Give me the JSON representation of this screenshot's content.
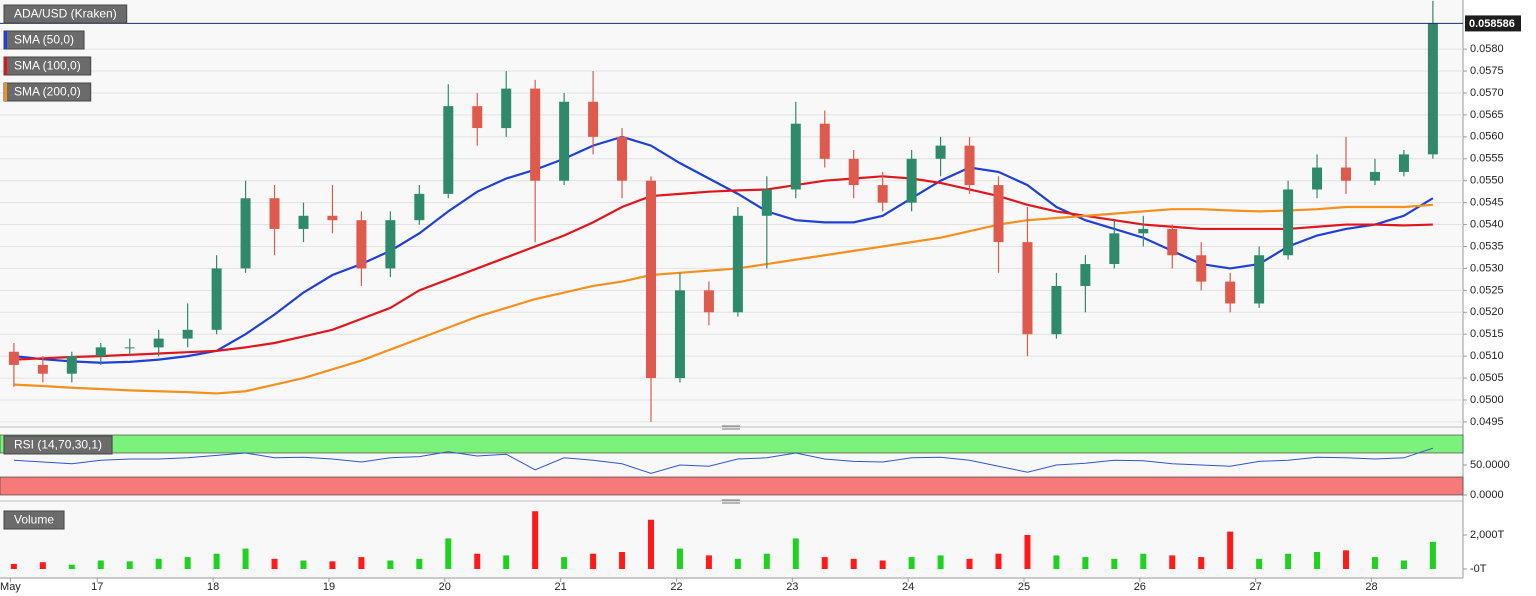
{
  "chart_data": [
    {
      "type": "candlestick",
      "title": "ADA/USD (Kraken)",
      "x": [
        16.28,
        16.53,
        16.78,
        17.03,
        17.28,
        17.53,
        17.78,
        18.03,
        18.28,
        18.53,
        18.78,
        19.03,
        19.28,
        19.53,
        19.78,
        20.03,
        20.28,
        20.53,
        20.78,
        21.03,
        21.28,
        21.53,
        21.78,
        22.03,
        22.28,
        22.53,
        22.78,
        23.03,
        23.28,
        23.53,
        23.78,
        24.03,
        24.28,
        24.53,
        24.78,
        25.03,
        25.28,
        25.53,
        25.78,
        26.03,
        26.28,
        26.53,
        26.78,
        27.03,
        27.28,
        27.53,
        27.78,
        28.03,
        28.28,
        28.53
      ],
      "open": [
        0.0511,
        0.0508,
        0.0506,
        0.051,
        0.0512,
        0.0512,
        0.0514,
        0.0516,
        0.053,
        0.0546,
        0.0539,
        0.0542,
        0.0541,
        0.053,
        0.0541,
        0.0547,
        0.0567,
        0.0562,
        0.0571,
        0.055,
        0.0568,
        0.056,
        0.055,
        0.0505,
        0.0525,
        0.052,
        0.0542,
        0.0548,
        0.0563,
        0.0555,
        0.0549,
        0.0545,
        0.0555,
        0.0558,
        0.0549,
        0.0536,
        0.0515,
        0.0526,
        0.0531,
        0.0538,
        0.0539,
        0.0533,
        0.0527,
        0.0522,
        0.0533,
        0.0548,
        0.0553,
        0.055,
        0.0552,
        0.0556
      ],
      "high": [
        0.0513,
        0.051,
        0.0511,
        0.0513,
        0.0514,
        0.0516,
        0.0522,
        0.0533,
        0.055,
        0.0549,
        0.0545,
        0.0549,
        0.0543,
        0.0543,
        0.0549,
        0.0572,
        0.057,
        0.0575,
        0.0573,
        0.057,
        0.0575,
        0.0562,
        0.0551,
        0.0529,
        0.0527,
        0.0544,
        0.0551,
        0.0568,
        0.0566,
        0.0557,
        0.0552,
        0.0557,
        0.056,
        0.056,
        0.0551,
        0.0544,
        0.0529,
        0.0533,
        0.0541,
        0.0542,
        0.054,
        0.0536,
        0.0529,
        0.0535,
        0.055,
        0.0556,
        0.056,
        0.0555,
        0.0557,
        0.0591
      ],
      "low": [
        0.0503,
        0.0504,
        0.0504,
        0.0508,
        0.051,
        0.051,
        0.0512,
        0.0515,
        0.0529,
        0.0533,
        0.0536,
        0.0538,
        0.0526,
        0.0528,
        0.054,
        0.0546,
        0.0558,
        0.056,
        0.0536,
        0.0549,
        0.0556,
        0.0546,
        0.0495,
        0.0504,
        0.0517,
        0.0519,
        0.053,
        0.0546,
        0.0553,
        0.0546,
        0.0543,
        0.0543,
        0.0551,
        0.0547,
        0.0529,
        0.051,
        0.0514,
        0.052,
        0.053,
        0.0535,
        0.053,
        0.0525,
        0.052,
        0.0521,
        0.0532,
        0.0546,
        0.0547,
        0.0549,
        0.0551,
        0.0555
      ],
      "close": [
        0.0508,
        0.0506,
        0.051,
        0.0512,
        0.0512,
        0.0514,
        0.0516,
        0.053,
        0.0546,
        0.0539,
        0.0542,
        0.0541,
        0.053,
        0.0541,
        0.0547,
        0.0567,
        0.0562,
        0.0571,
        0.055,
        0.0568,
        0.056,
        0.055,
        0.0505,
        0.0525,
        0.052,
        0.0542,
        0.0548,
        0.0563,
        0.0555,
        0.0549,
        0.0545,
        0.0555,
        0.0558,
        0.0549,
        0.0536,
        0.0515,
        0.0526,
        0.0531,
        0.0538,
        0.0539,
        0.0533,
        0.0527,
        0.0522,
        0.0533,
        0.0548,
        0.0553,
        0.055,
        0.0552,
        0.0556,
        0.058586
      ],
      "up_color": "#2f8a6c",
      "down_color": "#dd5a4c",
      "last_price": 0.058586,
      "series": [
        {
          "name": "SMA (50,0)",
          "color": "#1f3fd6",
          "values": [
            0.051,
            0.05093,
            0.05088,
            0.05085,
            0.05087,
            0.05092,
            0.051,
            0.05112,
            0.0515,
            0.05195,
            0.05245,
            0.05285,
            0.0531,
            0.0534,
            0.0538,
            0.0543,
            0.05475,
            0.05505,
            0.05525,
            0.0555,
            0.0558,
            0.056,
            0.0558,
            0.0554,
            0.05505,
            0.0547,
            0.0543,
            0.0541,
            0.05405,
            0.05405,
            0.0542,
            0.0546,
            0.055,
            0.0553,
            0.0552,
            0.0549,
            0.0544,
            0.0541,
            0.0539,
            0.0537,
            0.0534,
            0.0531,
            0.053,
            0.0531,
            0.0535,
            0.05375,
            0.0539,
            0.054,
            0.0542,
            0.0546
          ]
        },
        {
          "name": "SMA (100,0)",
          "color": "#e0161e",
          "values": [
            0.05092,
            0.05095,
            0.05098,
            0.051,
            0.05103,
            0.05106,
            0.05109,
            0.05112,
            0.0512,
            0.0513,
            0.05145,
            0.0516,
            0.05185,
            0.0521,
            0.0525,
            0.05275,
            0.053,
            0.05325,
            0.0535,
            0.05375,
            0.05405,
            0.0544,
            0.05465,
            0.0547,
            0.05475,
            0.05478,
            0.0548,
            0.0549,
            0.055,
            0.05505,
            0.0551,
            0.05505,
            0.05495,
            0.0548,
            0.05465,
            0.05445,
            0.0543,
            0.0542,
            0.0541,
            0.054,
            0.05395,
            0.0539,
            0.0539,
            0.0539,
            0.0539,
            0.05395,
            0.054,
            0.054,
            0.05398,
            0.054
          ]
        },
        {
          "name": "SMA (200,0)",
          "color": "#f5901e",
          "values": [
            0.05035,
            0.05032,
            0.05028,
            0.05025,
            0.05022,
            0.0502,
            0.05018,
            0.05015,
            0.0502,
            0.05035,
            0.0505,
            0.0507,
            0.0509,
            0.05115,
            0.0514,
            0.05165,
            0.0519,
            0.0521,
            0.0523,
            0.05245,
            0.0526,
            0.0527,
            0.05285,
            0.0529,
            0.05295,
            0.053,
            0.0531,
            0.0532,
            0.0533,
            0.0534,
            0.0535,
            0.0536,
            0.0537,
            0.05385,
            0.054,
            0.0541,
            0.05415,
            0.0542,
            0.05425,
            0.0543,
            0.05435,
            0.05435,
            0.05432,
            0.0543,
            0.05432,
            0.05435,
            0.0544,
            0.0544,
            0.0544,
            0.05445
          ]
        }
      ],
      "xlim": [
        16.16,
        28.79
      ],
      "ylim": [
        0.04943,
        0.05912
      ],
      "grid": true,
      "yticks": [
        0.0495,
        {
          "value": 0.05,
          "label": "0.0500"
        },
        0.0505,
        {
          "value": 0.051,
          "label": "0.0510"
        },
        0.0515,
        {
          "value": 0.052,
          "label": "0.0520"
        },
        0.0525,
        {
          "value": 0.053,
          "label": "0.0530"
        },
        0.0535,
        {
          "value": 0.054,
          "label": "0.0540"
        },
        0.0545,
        {
          "value": 0.055,
          "label": "0.0550"
        },
        0.0555,
        {
          "value": 0.056,
          "label": "0.0560"
        },
        0.0565,
        {
          "value": 0.057,
          "label": "0.0570"
        },
        0.0575,
        {
          "value": 0.058,
          "label": "0.0580"
        }
      ]
    },
    {
      "type": "line",
      "x": [
        16.28,
        16.53,
        16.78,
        17.03,
        17.28,
        17.53,
        17.78,
        18.03,
        18.28,
        18.53,
        18.78,
        19.03,
        19.28,
        19.53,
        19.78,
        20.03,
        20.28,
        20.53,
        20.78,
        21.03,
        21.28,
        21.53,
        21.78,
        22.03,
        22.28,
        22.53,
        22.78,
        23.03,
        23.28,
        23.53,
        23.78,
        24.03,
        24.28,
        24.53,
        24.78,
        25.03,
        25.28,
        25.53,
        25.78,
        26.03,
        26.28,
        26.53,
        26.78,
        27.03,
        27.28,
        27.53,
        27.78,
        28.03,
        28.28,
        28.53
      ],
      "series": [
        {
          "name": "RSI (14,70,30,1)",
          "color": "#3553c8",
          "values": [
            58,
            55,
            52,
            58,
            60,
            60,
            62,
            66,
            70,
            62,
            63,
            60,
            55,
            62,
            64,
            72,
            65,
            68,
            42,
            62,
            58,
            52,
            36,
            50,
            48,
            60,
            62,
            70,
            60,
            56,
            55,
            62,
            63,
            58,
            48,
            38,
            50,
            53,
            58,
            57,
            52,
            50,
            48,
            56,
            58,
            63,
            62,
            60,
            62,
            78
          ]
        }
      ],
      "overbought": 70,
      "oversold": 30,
      "max": 100,
      "overbought_color": "#7cf27c",
      "oversold_color": "#f77a7a",
      "xlim": [
        16.16,
        28.79
      ],
      "ylim": [
        0,
        105
      ],
      "yticks": [
        {
          "value": 50,
          "label": "50.0000"
        },
        {
          "value": 0,
          "label": "0.0000"
        }
      ]
    },
    {
      "type": "bar",
      "x": [
        16.28,
        16.53,
        16.78,
        17.03,
        17.28,
        17.53,
        17.78,
        18.03,
        18.28,
        18.53,
        18.78,
        19.03,
        19.28,
        19.53,
        19.78,
        20.03,
        20.28,
        20.53,
        20.78,
        21.03,
        21.28,
        21.53,
        21.78,
        22.03,
        22.28,
        22.53,
        22.78,
        23.03,
        23.28,
        23.53,
        23.78,
        24.03,
        24.28,
        24.53,
        24.78,
        25.03,
        25.28,
        25.53,
        25.78,
        26.03,
        26.28,
        26.53,
        26.78,
        27.03,
        27.28,
        27.53,
        27.78,
        28.03,
        28.28,
        28.53
      ],
      "series": [
        {
          "name": "Volume",
          "values": [
            300,
            400,
            250,
            500,
            450,
            600,
            700,
            900,
            1200,
            600,
            500,
            450,
            700,
            500,
            600,
            1800,
            900,
            800,
            3400,
            700,
            900,
            1000,
            2900,
            1200,
            800,
            600,
            900,
            1800,
            700,
            600,
            500,
            700,
            800,
            600,
            900,
            2000,
            800,
            700,
            600,
            900,
            800,
            700,
            2200,
            600,
            900,
            1000,
            1100,
            700,
            500,
            1600
          ]
        }
      ],
      "up_color": "#1fd21f",
      "down_color": "#ff1a1a",
      "xlim": [
        16.16,
        28.79
      ],
      "ylim": [
        -530,
        3590
      ],
      "yticks": [
        {
          "value": 2000,
          "label": "2,000T"
        },
        {
          "value": 0,
          "label": "-0T"
        }
      ],
      "xticks": [
        {
          "value": 16.25,
          "label": "May"
        },
        17,
        18,
        19,
        20,
        21,
        22,
        23,
        24,
        25,
        26,
        27,
        28
      ]
    }
  ]
}
